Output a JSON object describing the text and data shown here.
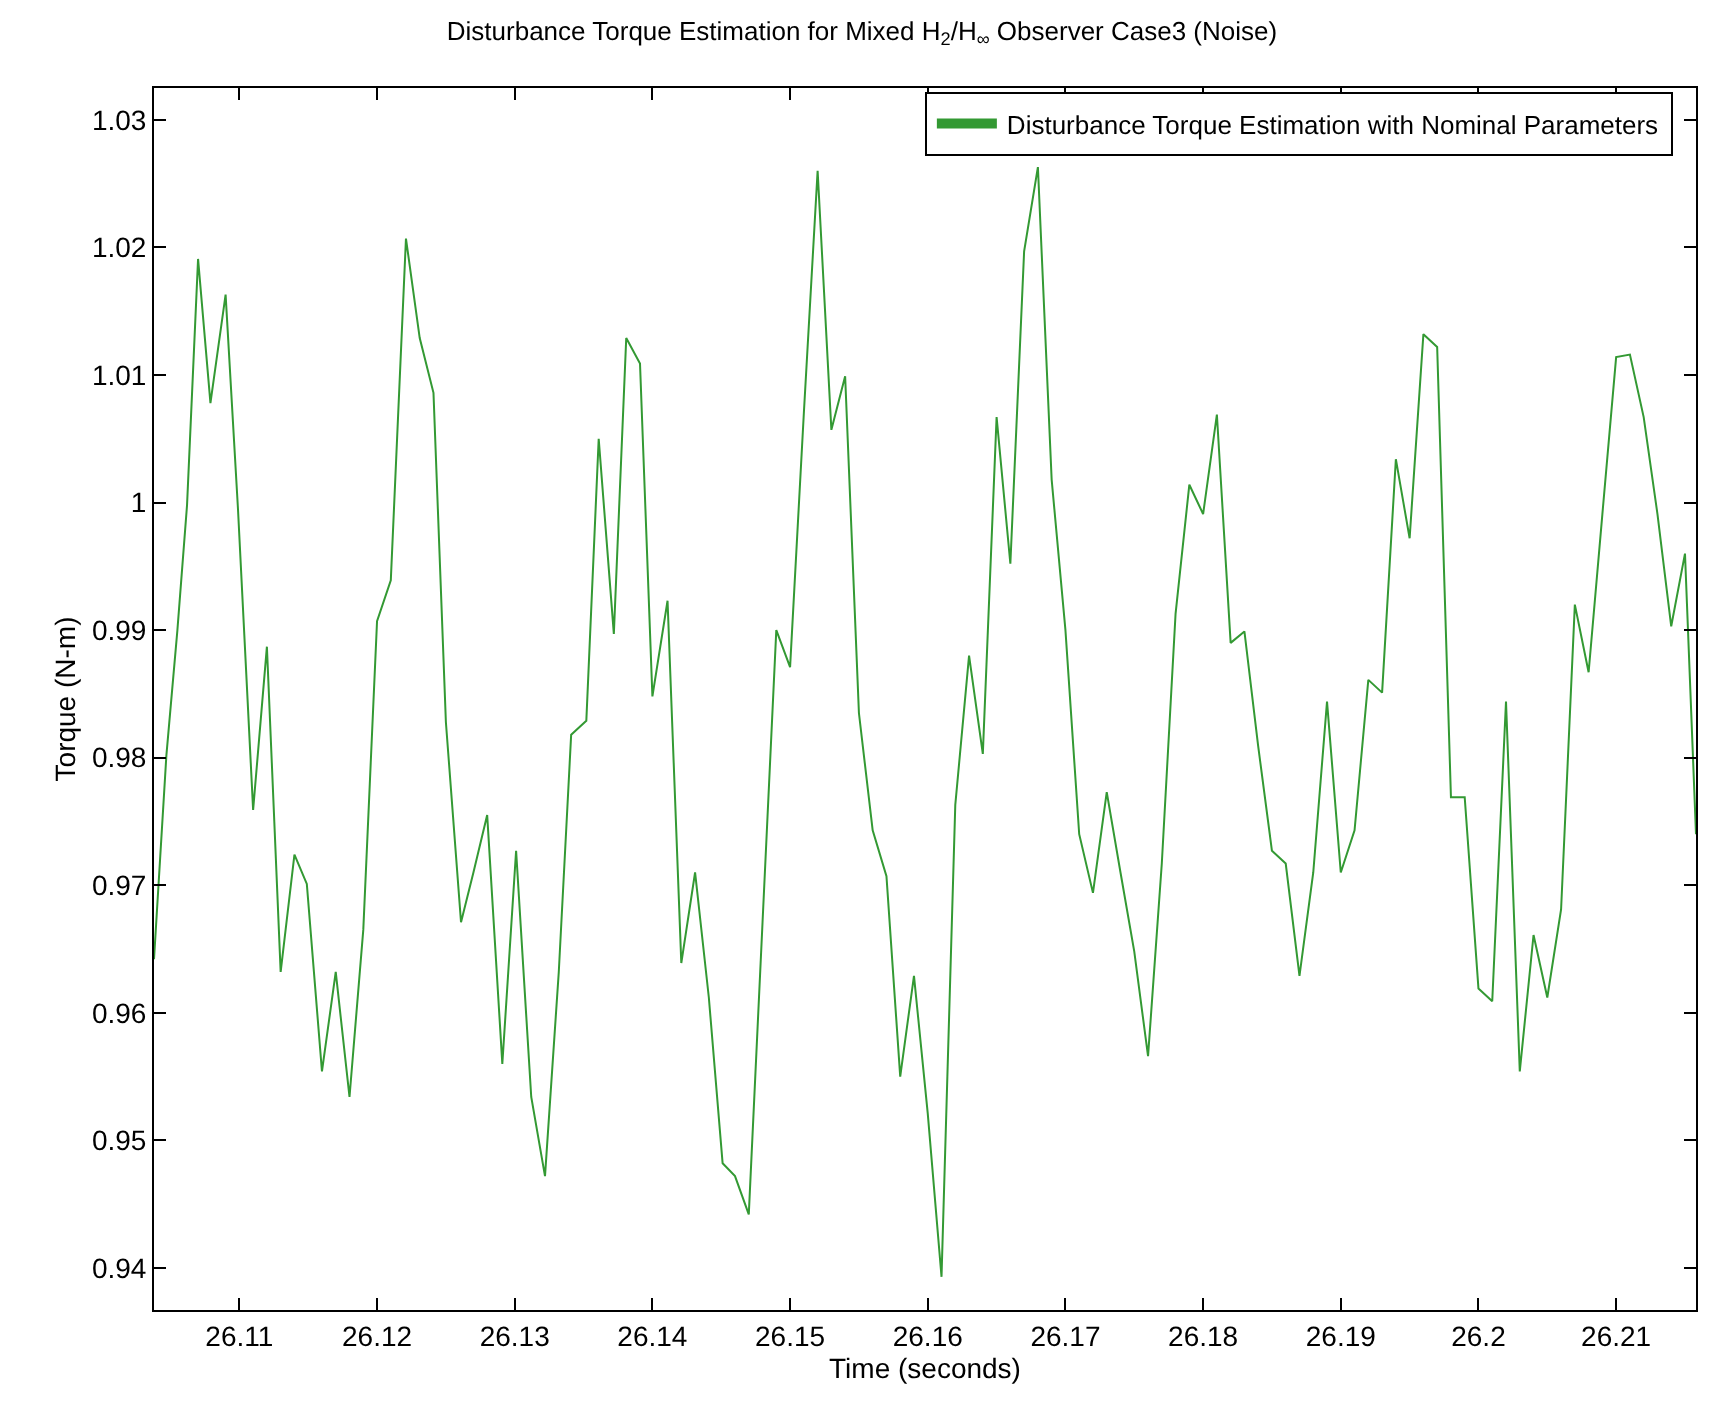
{
  "chart_data": {
    "type": "line",
    "title": "Disturbance Torque Estimation for Mixed H$_{2}$/H$_{∞}$ Observer Case3 (Noise)",
    "xlabel": "Time (seconds)",
    "ylabel": "Torque (N-m)",
    "x": [
      26.1038,
      26.1047,
      26.1055,
      26.1062,
      26.107,
      26.1079,
      26.109,
      26.1099,
      26.111,
      26.112,
      26.113,
      26.114,
      26.1149,
      26.116,
      26.117,
      26.118,
      26.119,
      26.12,
      26.121,
      26.1221,
      26.1231,
      26.1241,
      26.125,
      26.1261,
      26.127,
      26.128,
      26.1291,
      26.1301,
      26.1312,
      26.1322,
      26.1332,
      26.1341,
      26.1352,
      26.1361,
      26.1372,
      26.1381,
      26.1391,
      26.14,
      26.1411,
      26.1421,
      26.1431,
      26.1441,
      26.1451,
      26.146,
      26.147,
      26.148,
      26.149,
      26.15,
      26.151,
      26.152,
      26.153,
      26.154,
      26.155,
      26.156,
      26.157,
      26.158,
      26.159,
      26.16,
      26.161,
      26.162,
      26.163,
      26.164,
      26.165,
      26.166,
      26.167,
      26.168,
      26.169,
      26.17,
      26.171,
      26.172,
      26.173,
      26.174,
      26.175,
      26.176,
      26.177,
      26.178,
      26.179,
      26.18,
      26.181,
      26.182,
      26.183,
      26.184,
      26.185,
      26.186,
      26.187,
      26.188,
      26.189,
      26.19,
      26.191,
      26.192,
      26.193,
      26.194,
      26.195,
      26.196,
      26.197,
      26.198,
      26.199,
      26.2,
      26.201,
      26.202,
      26.203,
      26.204,
      26.205,
      26.206,
      26.207,
      26.208,
      26.209,
      26.21,
      26.211,
      26.212,
      26.213,
      26.214,
      26.215,
      26.2158
    ],
    "series": [
      {
        "name": "Disturbance Torque Estimation with Nominal Parameters",
        "color": "#339933",
        "values": [
          0.9642,
          0.9802,
          0.99,
          0.9998,
          1.0191,
          1.0078,
          1.0163,
          0.9995,
          0.9759,
          0.9887,
          0.9632,
          0.9724,
          0.9701,
          0.9554,
          0.9632,
          0.9534,
          0.9665,
          0.9907,
          0.9939,
          1.0207,
          1.0129,
          1.0086,
          0.9828,
          0.9671,
          0.971,
          0.9755,
          0.956,
          0.9727,
          0.9534,
          0.9472,
          0.9632,
          0.9818,
          0.9829,
          1.005,
          0.9897,
          1.0129,
          1.0109,
          0.9848,
          0.9923,
          0.9639,
          0.971,
          0.9612,
          0.9482,
          0.9472,
          0.9442,
          0.9671,
          0.99,
          0.9871,
          1.007,
          1.026,
          1.0057,
          1.0099,
          0.9835,
          0.9743,
          0.9707,
          0.955,
          0.9629,
          0.9521,
          0.9393,
          0.9763,
          0.988,
          0.9803,
          1.0067,
          0.9952,
          1.0197,
          1.0263,
          1.0018,
          0.99,
          0.974,
          0.9694,
          0.9773,
          0.971,
          0.9648,
          0.9566,
          0.9717,
          0.9913,
          1.0014,
          0.9991,
          1.0069,
          0.989,
          0.9899,
          0.9809,
          0.9727,
          0.9717,
          0.9629,
          0.971,
          0.9844,
          0.971,
          0.9743,
          0.9861,
          0.9851,
          1.0034,
          0.9972,
          1.0132,
          1.0122,
          0.9769,
          0.9769,
          0.9619,
          0.9609,
          0.9844,
          0.9554,
          0.9661,
          0.9612,
          0.9681,
          0.992,
          0.9867,
          0.9991,
          1.0114,
          1.0116,
          1.0067,
          0.9991,
          0.9903,
          0.996,
          0.974
        ]
      }
    ],
    "xlim": [
      26.1038,
      26.2158
    ],
    "ylim": [
      0.9367,
      1.0325
    ],
    "xticks": [
      26.11,
      26.12,
      26.13,
      26.14,
      26.15,
      26.16,
      26.17,
      26.18,
      26.19,
      26.2,
      26.21
    ],
    "yticks": [
      0.94,
      0.95,
      0.96,
      0.97,
      0.98,
      0.99,
      1,
      1.01,
      1.02,
      1.03
    ],
    "legend": "top right",
    "marker": "none",
    "line_style": "solid"
  }
}
